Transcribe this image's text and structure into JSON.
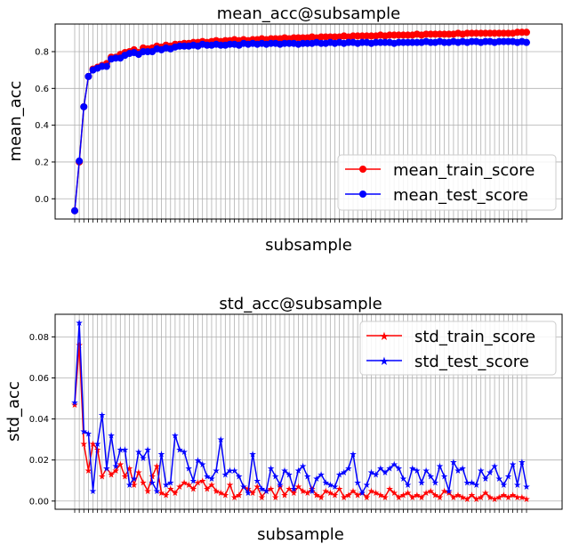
{
  "chart_data": [
    {
      "type": "line",
      "title": "mean_acc@subsample",
      "xlabel": "subsample",
      "ylabel": "mean_acc",
      "ylim": [
        -0.11,
        0.95
      ],
      "yticks": [
        0.0,
        0.2,
        0.4,
        0.6,
        0.8
      ],
      "grid": true,
      "legend_loc": "lower right",
      "marker": "circle",
      "series": [
        {
          "name": "mean_train_score",
          "color": "#ff0000",
          "values": [
            -0.065,
            0.2,
            0.5,
            0.665,
            0.705,
            0.715,
            0.725,
            0.735,
            0.77,
            0.77,
            0.785,
            0.795,
            0.8,
            0.81,
            0.795,
            0.82,
            0.815,
            0.82,
            0.83,
            0.825,
            0.835,
            0.83,
            0.84,
            0.84,
            0.845,
            0.845,
            0.85,
            0.85,
            0.855,
            0.85,
            0.855,
            0.86,
            0.855,
            0.86,
            0.86,
            0.865,
            0.86,
            0.865,
            0.86,
            0.865,
            0.865,
            0.87,
            0.865,
            0.87,
            0.87,
            0.87,
            0.875,
            0.87,
            0.875,
            0.875,
            0.875,
            0.875,
            0.88,
            0.875,
            0.88,
            0.88,
            0.88,
            0.88,
            0.88,
            0.885,
            0.88,
            0.885,
            0.885,
            0.885,
            0.885,
            0.885,
            0.885,
            0.89,
            0.885,
            0.89,
            0.89,
            0.89,
            0.89,
            0.89,
            0.89,
            0.895,
            0.89,
            0.895,
            0.895,
            0.895,
            0.895,
            0.895,
            0.895,
            0.895,
            0.9,
            0.895,
            0.9,
            0.9,
            0.9,
            0.9,
            0.9,
            0.9,
            0.9,
            0.9,
            0.9,
            0.9,
            0.9,
            0.905,
            0.905,
            0.905
          ]
        },
        {
          "name": "mean_test_score",
          "color": "#0000ff",
          "values": [
            -0.065,
            0.205,
            0.5,
            0.665,
            0.7,
            0.71,
            0.72,
            0.72,
            0.76,
            0.765,
            0.765,
            0.78,
            0.79,
            0.795,
            0.785,
            0.8,
            0.8,
            0.8,
            0.815,
            0.81,
            0.82,
            0.815,
            0.825,
            0.83,
            0.83,
            0.83,
            0.835,
            0.83,
            0.84,
            0.835,
            0.835,
            0.84,
            0.835,
            0.835,
            0.84,
            0.84,
            0.835,
            0.845,
            0.84,
            0.845,
            0.84,
            0.845,
            0.84,
            0.845,
            0.845,
            0.84,
            0.845,
            0.845,
            0.845,
            0.84,
            0.845,
            0.845,
            0.845,
            0.85,
            0.845,
            0.845,
            0.85,
            0.845,
            0.85,
            0.845,
            0.85,
            0.85,
            0.845,
            0.85,
            0.85,
            0.845,
            0.85,
            0.85,
            0.85,
            0.85,
            0.845,
            0.85,
            0.85,
            0.85,
            0.85,
            0.85,
            0.85,
            0.855,
            0.85,
            0.85,
            0.855,
            0.85,
            0.85,
            0.855,
            0.85,
            0.855,
            0.85,
            0.855,
            0.855,
            0.85,
            0.855,
            0.855,
            0.85,
            0.855,
            0.855,
            0.855,
            0.855,
            0.85,
            0.855,
            0.85
          ]
        }
      ]
    },
    {
      "type": "line",
      "title": "std_acc@subsample",
      "xlabel": "subsample",
      "ylabel": "std_acc",
      "ylim": [
        -0.004,
        0.091
      ],
      "yticks": [
        0.0,
        0.02,
        0.04,
        0.06,
        0.08
      ],
      "grid": true,
      "legend_loc": "upper right",
      "marker": "star",
      "series": [
        {
          "name": "std_train_score",
          "color": "#ff0000",
          "values": [
            0.047,
            0.076,
            0.028,
            0.015,
            0.028,
            0.025,
            0.012,
            0.016,
            0.013,
            0.015,
            0.018,
            0.012,
            0.016,
            0.008,
            0.014,
            0.009,
            0.005,
            0.012,
            0.017,
            0.004,
            0.003,
            0.006,
            0.004,
            0.007,
            0.009,
            0.008,
            0.006,
            0.009,
            0.01,
            0.006,
            0.008,
            0.005,
            0.004,
            0.003,
            0.008,
            0.002,
            0.003,
            0.007,
            0.006,
            0.004,
            0.007,
            0.002,
            0.005,
            0.006,
            0.002,
            0.007,
            0.003,
            0.006,
            0.004,
            0.007,
            0.005,
            0.004,
            0.006,
            0.003,
            0.002,
            0.005,
            0.004,
            0.003,
            0.006,
            0.002,
            0.003,
            0.005,
            0.003,
            0.004,
            0.002,
            0.005,
            0.004,
            0.003,
            0.002,
            0.006,
            0.004,
            0.002,
            0.003,
            0.004,
            0.002,
            0.003,
            0.002,
            0.004,
            0.005,
            0.003,
            0.002,
            0.005,
            0.004,
            0.002,
            0.003,
            0.002,
            0.001,
            0.003,
            0.001,
            0.002,
            0.004,
            0.002,
            0.001,
            0.002,
            0.003,
            0.002,
            0.003,
            0.002,
            0.002,
            0.001
          ]
        },
        {
          "name": "std_test_score",
          "color": "#0000ff",
          "values": [
            0.048,
            0.087,
            0.034,
            0.033,
            0.005,
            0.028,
            0.042,
            0.016,
            0.032,
            0.017,
            0.025,
            0.025,
            0.008,
            0.011,
            0.024,
            0.021,
            0.025,
            0.009,
            0.005,
            0.023,
            0.008,
            0.009,
            0.032,
            0.025,
            0.024,
            0.016,
            0.01,
            0.02,
            0.018,
            0.012,
            0.011,
            0.015,
            0.03,
            0.013,
            0.015,
            0.015,
            0.012,
            0.007,
            0.004,
            0.023,
            0.01,
            0.006,
            0.005,
            0.016,
            0.012,
            0.008,
            0.015,
            0.013,
            0.006,
            0.015,
            0.017,
            0.012,
            0.005,
            0.011,
            0.013,
            0.009,
            0.008,
            0.007,
            0.013,
            0.014,
            0.016,
            0.023,
            0.009,
            0.004,
            0.008,
            0.014,
            0.013,
            0.016,
            0.014,
            0.016,
            0.018,
            0.016,
            0.011,
            0.008,
            0.016,
            0.015,
            0.009,
            0.015,
            0.012,
            0.009,
            0.017,
            0.012,
            0.005,
            0.019,
            0.015,
            0.016,
            0.009,
            0.009,
            0.008,
            0.015,
            0.011,
            0.014,
            0.017,
            0.011,
            0.008,
            0.012,
            0.018,
            0.008,
            0.019,
            0.007
          ]
        }
      ]
    }
  ]
}
